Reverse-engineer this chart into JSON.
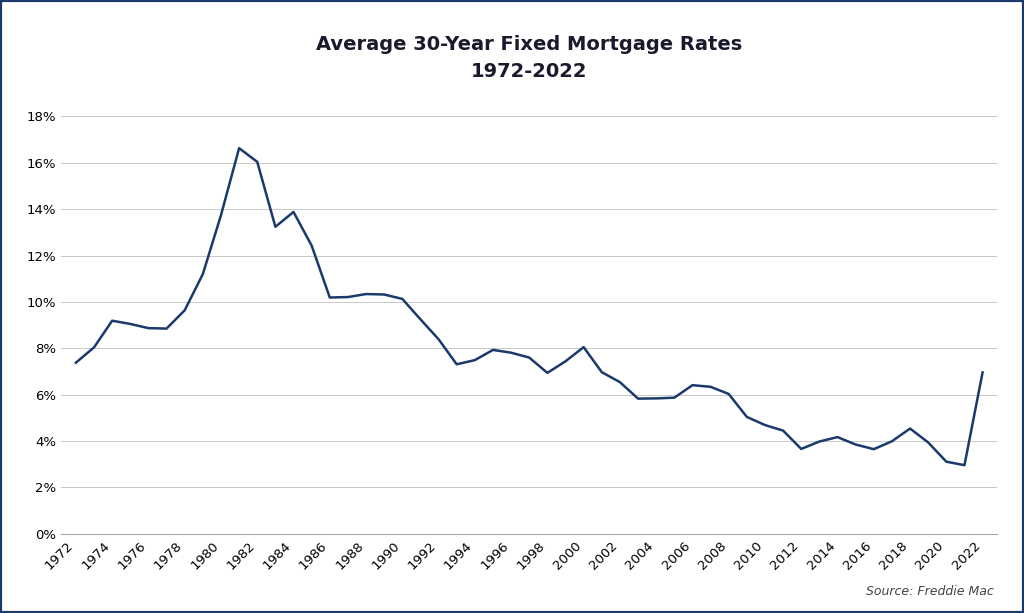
{
  "title_line1": "Average 30-Year Fixed Mortgage Rates",
  "title_line2": "1972-2022",
  "source": "Source: Freddie Mac",
  "line_color": "#1a3a6b",
  "background_color": "#ffffff",
  "grid_color": "#c8c8c8",
  "border_color": "#1a3a6b",
  "years": [
    1972,
    1973,
    1974,
    1975,
    1976,
    1977,
    1978,
    1979,
    1980,
    1981,
    1982,
    1983,
    1984,
    1985,
    1986,
    1987,
    1988,
    1989,
    1990,
    1991,
    1992,
    1993,
    1994,
    1995,
    1996,
    1997,
    1998,
    1999,
    2000,
    2001,
    2002,
    2003,
    2004,
    2005,
    2006,
    2007,
    2008,
    2009,
    2010,
    2011,
    2012,
    2013,
    2014,
    2015,
    2016,
    2017,
    2018,
    2019,
    2020,
    2021,
    2022
  ],
  "rates": [
    7.38,
    8.04,
    9.19,
    9.05,
    8.87,
    8.85,
    9.64,
    11.2,
    13.74,
    16.63,
    16.04,
    13.24,
    13.88,
    12.43,
    10.19,
    10.21,
    10.34,
    10.32,
    10.13,
    9.25,
    8.39,
    7.31,
    7.49,
    7.93,
    7.81,
    7.6,
    6.94,
    7.44,
    8.05,
    6.97,
    6.54,
    5.83,
    5.84,
    5.87,
    6.41,
    6.34,
    6.03,
    5.04,
    4.69,
    4.45,
    3.66,
    3.98,
    4.17,
    3.85,
    3.65,
    3.99,
    4.54,
    3.94,
    3.11,
    2.96,
    6.96
  ],
  "ylim": [
    0,
    19
  ],
  "yticks": [
    0,
    2,
    4,
    6,
    8,
    10,
    12,
    14,
    16,
    18
  ],
  "xtick_years": [
    1972,
    1974,
    1976,
    1978,
    1980,
    1982,
    1984,
    1986,
    1988,
    1990,
    1992,
    1994,
    1996,
    1998,
    2000,
    2002,
    2004,
    2006,
    2008,
    2010,
    2012,
    2014,
    2016,
    2018,
    2020,
    2022
  ],
  "line_width": 1.8,
  "title_fontsize": 14,
  "tick_fontsize": 9.5,
  "source_fontsize": 9
}
